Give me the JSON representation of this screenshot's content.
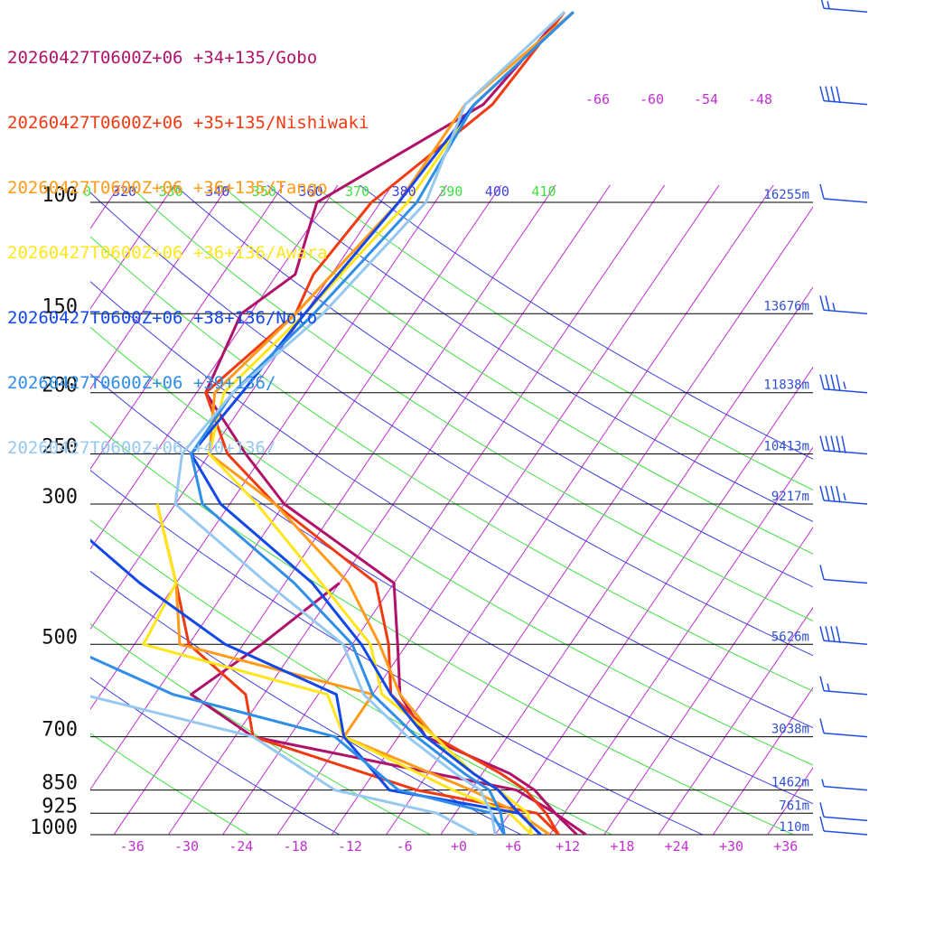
{
  "legend": [
    {
      "label": "20260427T0600Z+06 +34+135/Gobo",
      "color": "#b0126a"
    },
    {
      "label": "20260427T0600Z+06 +35+135/Nishiwaki",
      "color": "#f03a12"
    },
    {
      "label": "20260427T0600Z+06 +36+135/Tango",
      "color": "#ff9a1a"
    },
    {
      "label": "20260427T0600Z+06 +36+136/Awara",
      "color": "#ffe61a"
    },
    {
      "label": "20260427T0600Z+06 +38+136/Noto",
      "color": "#1248e8"
    },
    {
      "label": "20260427T0600Z+06 +39+136/",
      "color": "#2e8ee8"
    },
    {
      "label": "20260427T0600Z+06 +40+136/",
      "color": "#96c8f0"
    }
  ],
  "chart_data": {
    "type": "line",
    "pressure_levels": [
      100,
      150,
      200,
      250,
      300,
      500,
      700,
      850,
      925,
      1000
    ],
    "heights": [
      {
        "p": 100,
        "label": "16255m"
      },
      {
        "p": 150,
        "label": "13676m"
      },
      {
        "p": 200,
        "label": "11838m"
      },
      {
        "p": 250,
        "label": "10413m"
      },
      {
        "p": 300,
        "label": "9217m"
      },
      {
        "p": 500,
        "label": "5626m"
      },
      {
        "p": 700,
        "label": "3038m"
      },
      {
        "p": 850,
        "label": "1462m"
      },
      {
        "p": 925,
        "label": "761m"
      },
      {
        "p": 1000,
        "label": "110m"
      }
    ],
    "temperature_ticks": [
      "-36",
      "-30",
      "-24",
      "-18",
      "-12",
      "-6",
      "+0",
      "+6",
      "+12",
      "+18",
      "+24",
      "+30",
      "+36"
    ],
    "isotherm_top_labels": [
      "-66",
      "-60",
      "-54",
      "-48"
    ],
    "theta_labels": [
      "0",
      "320",
      "330",
      "340",
      "350",
      "360",
      "370",
      "380",
      "390",
      "400",
      "410"
    ],
    "colors": {
      "isotherm": "#c030d0",
      "theta_blue": "#4040e0",
      "theta_green": "#40e040",
      "isobar": "#000000",
      "height_label": "#3050d0",
      "wind_barb": "#2050e0"
    },
    "series": [
      {
        "name": "20260427T0600Z+06 +34+135/Gobo",
        "color": "#b0126a",
        "temperature": [
          [
            50,
            -50
          ],
          [
            70,
            -52
          ],
          [
            100,
            -63
          ],
          [
            130,
            -60
          ],
          [
            150,
            -63
          ],
          [
            200,
            -61
          ],
          [
            250,
            -52
          ],
          [
            300,
            -44
          ],
          [
            400,
            -26
          ],
          [
            500,
            -21
          ],
          [
            600,
            -17
          ],
          [
            700,
            -11
          ],
          [
            800,
            1
          ],
          [
            850,
            5
          ],
          [
            925,
            9
          ],
          [
            1000,
            14
          ]
        ],
        "dewpoint": [
          [
            400,
            -32
          ],
          [
            500,
            -36
          ],
          [
            600,
            -40
          ],
          [
            700,
            -30
          ],
          [
            850,
            3
          ],
          [
            925,
            9
          ],
          [
            1000,
            13
          ]
        ]
      },
      {
        "name": "20260427T0600Z+06 +35+135/Nishiwaki",
        "color": "#f03a12",
        "temperature": [
          [
            50,
            -50
          ],
          [
            70,
            -51
          ],
          [
            100,
            -57
          ],
          [
            130,
            -58
          ],
          [
            150,
            -57
          ],
          [
            200,
            -61
          ],
          [
            250,
            -54
          ],
          [
            300,
            -45
          ],
          [
            400,
            -28
          ],
          [
            500,
            -22
          ],
          [
            600,
            -18
          ],
          [
            700,
            -10
          ],
          [
            800,
            0
          ],
          [
            850,
            4
          ],
          [
            925,
            8
          ],
          [
            1000,
            11
          ]
        ],
        "dewpoint": [
          [
            300,
            -58
          ],
          [
            400,
            -50
          ],
          [
            500,
            -44
          ],
          [
            600,
            -34
          ],
          [
            700,
            -30
          ],
          [
            850,
            -8
          ],
          [
            925,
            7
          ],
          [
            1000,
            11
          ]
        ]
      },
      {
        "name": "20260427T0600Z+06 +36+135/Tango",
        "color": "#ff9a1a",
        "temperature": [
          [
            50,
            -49
          ],
          [
            70,
            -54
          ],
          [
            100,
            -54
          ],
          [
            150,
            -57
          ],
          [
            200,
            -60
          ],
          [
            250,
            -56
          ],
          [
            300,
            -45
          ],
          [
            400,
            -31
          ],
          [
            500,
            -23
          ],
          [
            600,
            -17
          ],
          [
            700,
            -10
          ],
          [
            800,
            -3
          ],
          [
            850,
            1
          ],
          [
            925,
            5
          ],
          [
            1000,
            10
          ]
        ],
        "dewpoint": [
          [
            300,
            -58
          ],
          [
            400,
            -50
          ],
          [
            500,
            -45
          ],
          [
            600,
            -20
          ],
          [
            700,
            -20
          ],
          [
            850,
            -2
          ],
          [
            925,
            5
          ],
          [
            1000,
            10
          ]
        ]
      },
      {
        "name": "20260427T0600Z+06 +36+136/Awara",
        "color": "#ffe61a",
        "temperature": [
          [
            50,
            -49
          ],
          [
            70,
            -53
          ],
          [
            100,
            -53
          ],
          [
            150,
            -56
          ],
          [
            200,
            -59
          ],
          [
            250,
            -56
          ],
          [
            300,
            -47
          ],
          [
            400,
            -34
          ],
          [
            500,
            -24
          ],
          [
            600,
            -19
          ],
          [
            700,
            -10
          ],
          [
            800,
            -3
          ],
          [
            850,
            1
          ],
          [
            925,
            6
          ],
          [
            1000,
            8
          ]
        ],
        "dewpoint": [
          [
            300,
            -58
          ],
          [
            400,
            -50
          ],
          [
            500,
            -49
          ],
          [
            600,
            -25
          ],
          [
            700,
            -20
          ],
          [
            850,
            -4
          ],
          [
            925,
            4
          ],
          [
            1000,
            8
          ]
        ]
      },
      {
        "name": "20260427T0600Z+06 +38+136/Noto",
        "color": "#1248e8",
        "temperature": [
          [
            50,
            -49
          ],
          [
            70,
            -53
          ],
          [
            100,
            -54
          ],
          [
            150,
            -56
          ],
          [
            200,
            -57
          ],
          [
            250,
            -58
          ],
          [
            300,
            -51
          ],
          [
            400,
            -35
          ],
          [
            500,
            -25
          ],
          [
            600,
            -18
          ],
          [
            700,
            -11
          ],
          [
            800,
            -3
          ],
          [
            850,
            1
          ],
          [
            925,
            5
          ],
          [
            1000,
            9
          ]
        ],
        "dewpoint": [
          [
            300,
            -70
          ],
          [
            400,
            -54
          ],
          [
            500,
            -40
          ],
          [
            600,
            -24
          ],
          [
            700,
            -20
          ],
          [
            850,
            -11
          ],
          [
            925,
            5
          ],
          [
            1000,
            9
          ]
        ]
      },
      {
        "name": "20260427T0600Z+06 +39+136/",
        "color": "#2e8ee8",
        "temperature": [
          [
            50,
            -49
          ],
          [
            70,
            -53
          ],
          [
            100,
            -52
          ],
          [
            150,
            -55
          ],
          [
            200,
            -58
          ],
          [
            250,
            -58
          ],
          [
            300,
            -53
          ],
          [
            400,
            -37
          ],
          [
            500,
            -26
          ],
          [
            600,
            -20
          ],
          [
            700,
            -12
          ],
          [
            800,
            -4
          ],
          [
            850,
            0
          ],
          [
            925,
            3
          ],
          [
            1000,
            5
          ]
        ],
        "dewpoint": [
          [
            300,
            -68
          ],
          [
            400,
            -64
          ],
          [
            500,
            -58
          ],
          [
            600,
            -42
          ],
          [
            700,
            -21
          ],
          [
            850,
            -10
          ],
          [
            925,
            2
          ],
          [
            1000,
            5
          ]
        ]
      },
      {
        "name": "20260427T0600Z+06 +40+136/",
        "color": "#96c8f0",
        "temperature": [
          [
            50,
            -50
          ],
          [
            70,
            -54
          ],
          [
            100,
            -51
          ],
          [
            150,
            -54
          ],
          [
            200,
            -58
          ],
          [
            250,
            -59
          ],
          [
            300,
            -56
          ],
          [
            400,
            -40
          ],
          [
            500,
            -27
          ],
          [
            600,
            -21
          ],
          [
            700,
            -13
          ],
          [
            800,
            -5
          ],
          [
            850,
            -1
          ],
          [
            925,
            2
          ],
          [
            1000,
            4
          ]
        ],
        "dewpoint": [
          [
            300,
            -70
          ],
          [
            400,
            -64
          ],
          [
            500,
            -60
          ],
          [
            600,
            -52
          ],
          [
            700,
            -30
          ],
          [
            850,
            -17
          ],
          [
            925,
            -4
          ],
          [
            1000,
            2
          ]
        ]
      }
    ],
    "wind_barbs": [
      {
        "p": 50,
        "speed_kt": 15
      },
      {
        "p": 70,
        "speed_kt": 40
      },
      {
        "p": 100,
        "speed_kt": 10
      },
      {
        "p": 150,
        "speed_kt": 25
      },
      {
        "p": 200,
        "speed_kt": 45
      },
      {
        "p": 250,
        "speed_kt": 50
      },
      {
        "p": 300,
        "speed_kt": 45
      },
      {
        "p": 400,
        "speed_kt": 10
      },
      {
        "p": 500,
        "speed_kt": 40
      },
      {
        "p": 600,
        "speed_kt": 15
      },
      {
        "p": 700,
        "speed_kt": 10
      },
      {
        "p": 850,
        "speed_kt": 5
      },
      {
        "p": 950,
        "speed_kt": 10
      },
      {
        "p": 1000,
        "speed_kt": 10
      }
    ]
  }
}
